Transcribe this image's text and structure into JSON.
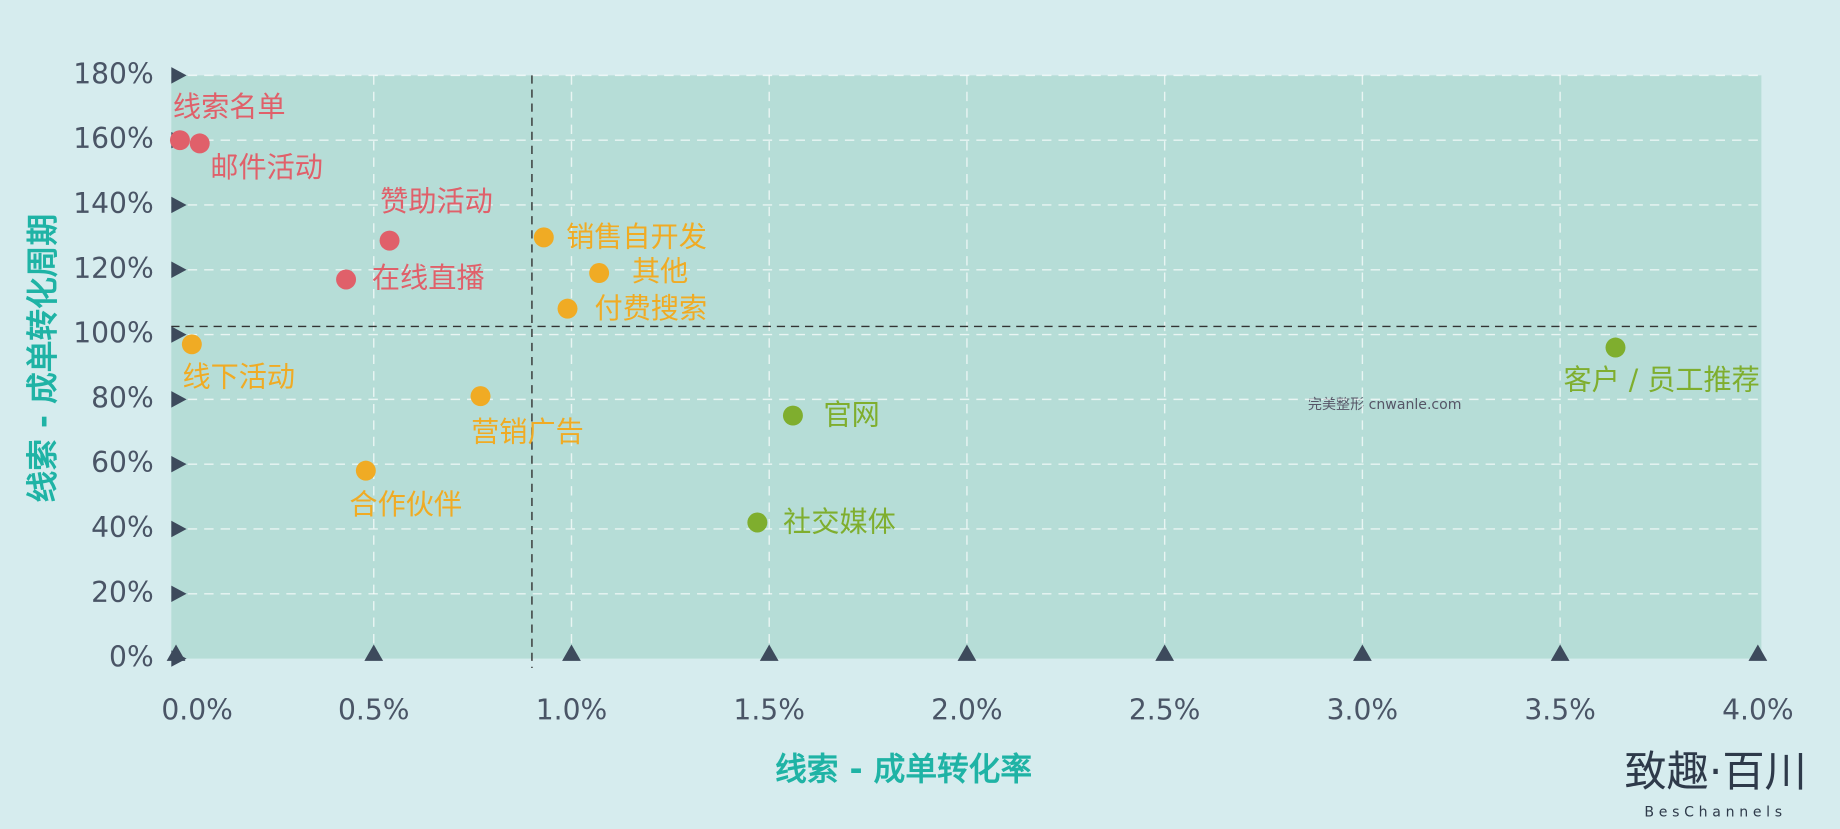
{
  "chart_data": {
    "type": "scatter",
    "x_label": "线索 - 成单转化率",
    "y_label": "线索 - 成单转化周期",
    "xlim": [
      0,
      4
    ],
    "ylim": [
      0,
      180
    ],
    "xticks": [
      {
        "value": 0,
        "label": "0.0%"
      },
      {
        "value": 0.5,
        "label": "0.5%"
      },
      {
        "value": 1,
        "label": "1.0%"
      },
      {
        "value": 1.5,
        "label": "1.5%"
      },
      {
        "value": 2,
        "label": "2.0%"
      },
      {
        "value": 2.5,
        "label": "2.5%"
      },
      {
        "value": 3,
        "label": "3.0%"
      },
      {
        "value": 3.5,
        "label": "3.5%"
      },
      {
        "value": 4,
        "label": "4.0%"
      }
    ],
    "yticks": [
      {
        "value": 0,
        "label": "0%"
      },
      {
        "value": 20,
        "label": "20%"
      },
      {
        "value": 40,
        "label": "40%"
      },
      {
        "value": 60,
        "label": "60%"
      },
      {
        "value": 80,
        "label": "80%"
      },
      {
        "value": 100,
        "label": "100%"
      },
      {
        "value": 120,
        "label": "120%"
      },
      {
        "value": 140,
        "label": "140%"
      },
      {
        "value": 160,
        "label": "160%"
      },
      {
        "value": 180,
        "label": "180%"
      }
    ],
    "grid": true,
    "reference_lines": {
      "x": 0.9,
      "y": 102.5
    },
    "series": [
      {
        "color": "#e0606a",
        "labels": [
          "线索名单",
          "邮件活动",
          "赞助活动",
          "在线直播"
        ],
        "x": [
          0.01,
          0.06,
          0.54,
          0.43
        ],
        "values": [
          160,
          159,
          129,
          117
        ]
      },
      {
        "color": "#f0ab24",
        "labels": [
          "线下活动",
          "销售自开发",
          "其他",
          "付费搜索",
          "营销广告",
          "合作伙伴"
        ],
        "x": [
          0.04,
          0.93,
          1.07,
          0.99,
          0.77,
          0.48
        ],
        "values": [
          97,
          130,
          119,
          108,
          81,
          58
        ]
      },
      {
        "color": "#7fae2e",
        "labels": [
          "官网",
          "社交媒体",
          "客户 / 员工推荐"
        ],
        "x": [
          1.56,
          1.47,
          3.64
        ],
        "values": [
          75,
          42,
          96
        ]
      }
    ],
    "watermark": "完美整形 cnwanle.com"
  },
  "logo": {
    "name": "致趣·百川",
    "sub": "BesChannels"
  }
}
